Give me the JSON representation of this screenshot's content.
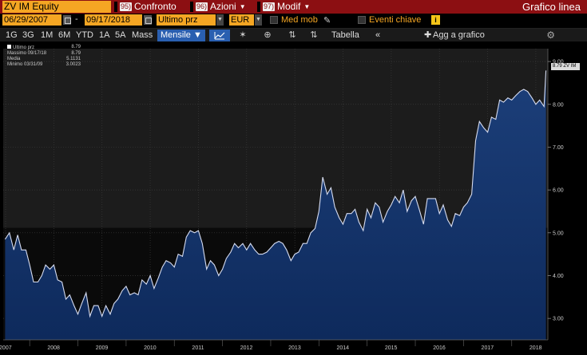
{
  "header": {
    "ticker": "ZV IM Equity",
    "menu": [
      {
        "num": "95)",
        "label": "Confronto"
      },
      {
        "num": "96)",
        "label": "Azioni"
      },
      {
        "num": "97)",
        "label": "Modif"
      }
    ],
    "chart_type": "Grafico linea"
  },
  "controls": {
    "start_date": "06/29/2007",
    "end_date": "09/17/2018",
    "field": "Ultimo prz",
    "currency": "EUR",
    "moving_avg_label": "Med mob",
    "events_label": "Eventi chiave",
    "dash": "-"
  },
  "toolbar": {
    "periods": [
      "1G",
      "3G",
      "1M",
      "6M",
      "YTD",
      "1A",
      "5A",
      "Mass"
    ],
    "frequency": "Mensile ▼",
    "table_label": "Tabella",
    "add_chart_label": "Agg a grafico",
    "collapse_icon": "«"
  },
  "legend": {
    "rows": [
      {
        "label": "Ultimo prz",
        "value": "8.79"
      },
      {
        "label": "Massimo 09/17/18",
        "value": "8.79"
      },
      {
        "label": "Media",
        "value": "5.1131"
      },
      {
        "label": "Minimo 03/31/09",
        "value": "3.0023"
      }
    ]
  },
  "last_price_label": "8.79 ZV IM",
  "colors": {
    "header_red": "#8c0f12",
    "field_orange": "#f5a623",
    "line": "#d6dcf0",
    "area": "#0e2a5c",
    "accent_blue": "#2a5fb0"
  },
  "chart_data": {
    "type": "area",
    "title": "",
    "xlabel": "",
    "ylabel": "",
    "ylim": [
      2.5,
      9.3
    ],
    "yticks": [
      3.0,
      4.0,
      5.0,
      6.0,
      7.0,
      8.0,
      9.0
    ],
    "ytick_labels": [
      "3.00",
      "4.00",
      "5.00",
      "6.00",
      "7.00",
      "8.00",
      "9.00"
    ],
    "xticks": [
      2007.5,
      2008.5,
      2009.5,
      2010.5,
      2011.5,
      2012.5,
      2013.5,
      2014.5,
      2015.5,
      2016.5,
      2017.5,
      2018.5
    ],
    "xtick_labels": [
      "2007",
      "2008",
      "2009",
      "2010",
      "2011",
      "2012",
      "2013",
      "2014",
      "2015",
      "2016",
      "2017",
      "2018"
    ],
    "xlim": [
      2007.45,
      2018.75
    ],
    "grid": true,
    "series": [
      {
        "x": [
          2007.49,
          2007.58,
          2007.67,
          2007.75,
          2007.83,
          2007.92,
          2008.0,
          2008.08,
          2008.17,
          2008.25,
          2008.33,
          2008.42,
          2008.5,
          2008.58,
          2008.67,
          2008.75,
          2008.83,
          2008.92,
          2009.0,
          2009.08,
          2009.17,
          2009.25,
          2009.33,
          2009.42,
          2009.5,
          2009.58,
          2009.67,
          2009.75,
          2009.83,
          2009.92,
          2010.0,
          2010.08,
          2010.17,
          2010.25,
          2010.33,
          2010.42,
          2010.5,
          2010.58,
          2010.67,
          2010.75,
          2010.83,
          2010.92,
          2011.0,
          2011.08,
          2011.17,
          2011.25,
          2011.33,
          2011.42,
          2011.5,
          2011.58,
          2011.67,
          2011.75,
          2011.83,
          2011.92,
          2012.0,
          2012.08,
          2012.17,
          2012.25,
          2012.33,
          2012.42,
          2012.5,
          2012.58,
          2012.67,
          2012.75,
          2012.83,
          2012.92,
          2013.0,
          2013.08,
          2013.17,
          2013.25,
          2013.33,
          2013.42,
          2013.5,
          2013.58,
          2013.67,
          2013.75,
          2013.83,
          2013.92,
          2014.0,
          2014.08,
          2014.17,
          2014.25,
          2014.33,
          2014.42,
          2014.5,
          2014.58,
          2014.67,
          2014.75,
          2014.83,
          2014.92,
          2015.0,
          2015.08,
          2015.17,
          2015.25,
          2015.33,
          2015.42,
          2015.5,
          2015.58,
          2015.67,
          2015.75,
          2015.83,
          2015.92,
          2016.0,
          2016.08,
          2016.17,
          2016.25,
          2016.33,
          2016.42,
          2016.5,
          2016.58,
          2016.67,
          2016.75,
          2016.83,
          2016.92,
          2017.0,
          2017.08,
          2017.17,
          2017.25,
          2017.33,
          2017.42,
          2017.5,
          2017.58,
          2017.67,
          2017.75,
          2017.83,
          2017.92,
          2018.0,
          2018.08,
          2018.17,
          2018.25,
          2018.33,
          2018.42,
          2018.5,
          2018.58,
          2018.67,
          2018.71
        ],
        "values": [
          4.85,
          5.0,
          4.6,
          4.95,
          4.6,
          4.6,
          4.25,
          3.85,
          3.85,
          4.0,
          4.25,
          4.15,
          4.25,
          3.9,
          3.85,
          3.45,
          3.55,
          3.3,
          3.1,
          3.35,
          3.6,
          3.05,
          3.3,
          3.3,
          3.05,
          3.3,
          3.1,
          3.35,
          3.45,
          3.65,
          3.75,
          3.55,
          3.6,
          3.55,
          3.9,
          3.8,
          4.0,
          3.7,
          3.95,
          4.2,
          4.35,
          4.3,
          4.2,
          4.5,
          4.45,
          4.9,
          5.05,
          5.0,
          5.05,
          4.75,
          4.15,
          4.35,
          4.25,
          4.0,
          4.15,
          4.4,
          4.55,
          4.75,
          4.65,
          4.75,
          4.6,
          4.75,
          4.6,
          4.5,
          4.5,
          4.55,
          4.65,
          4.75,
          4.8,
          4.75,
          4.6,
          4.35,
          4.5,
          4.55,
          4.75,
          4.75,
          5.0,
          5.1,
          5.5,
          6.3,
          5.9,
          6.05,
          5.6,
          5.35,
          5.2,
          5.45,
          5.45,
          5.55,
          5.25,
          5.05,
          5.55,
          5.35,
          5.7,
          5.6,
          5.25,
          5.5,
          5.65,
          5.85,
          5.7,
          6.0,
          5.5,
          5.75,
          5.85,
          5.55,
          5.2,
          5.8,
          5.8,
          5.8,
          5.45,
          5.65,
          5.3,
          5.15,
          5.45,
          5.4,
          5.6,
          5.7,
          5.9,
          7.15,
          7.6,
          7.45,
          7.35,
          7.7,
          7.65,
          8.1,
          8.05,
          8.15,
          8.1,
          8.2,
          8.3,
          8.35,
          8.3,
          8.15,
          8.0,
          8.1,
          7.95,
          8.79
        ]
      }
    ],
    "avg": 5.1131,
    "max_date": "09/17/18",
    "min_date": "03/31/09"
  }
}
